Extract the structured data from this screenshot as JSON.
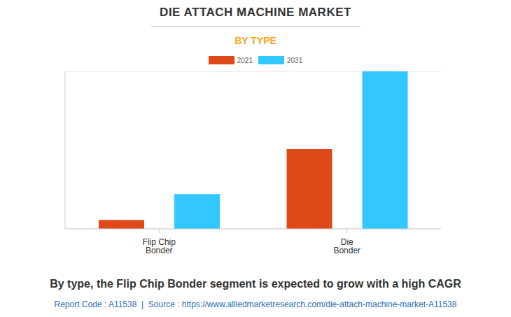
{
  "chart_data": {
    "type": "bar",
    "title": "DIE ATTACH MACHINE MARKET",
    "subtitle": "BY TYPE",
    "categories": [
      "Flip Chip Bonder",
      "Die Bonder"
    ],
    "series": [
      {
        "name": "2021",
        "color": "#e0491a",
        "values": [
          0.4,
          3.55
        ]
      },
      {
        "name": "2031",
        "color": "#33c7ff",
        "values": [
          1.55,
          7
        ]
      }
    ],
    "ylim": [
      0,
      7
    ],
    "yticks": [
      0,
      1,
      2,
      3,
      4,
      5,
      6,
      7
    ],
    "grid": true,
    "legend": "top",
    "tick_labels": "x",
    "caption": "By type, the Flip Chip Bonder segment is expected to grow with a high CAGR",
    "source": "Report Code : A11538  |  Source : https://www.alliedmarketresearch.com/die-attach-machine-market-A11538"
  }
}
